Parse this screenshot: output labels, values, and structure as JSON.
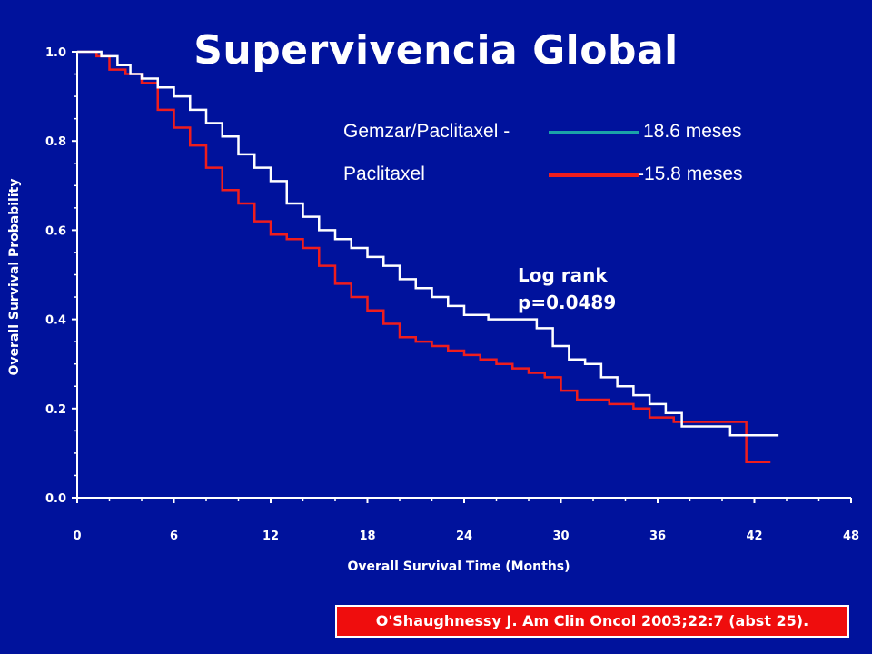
{
  "title": "Supervivencia Global",
  "legend": {
    "items": [
      {
        "name": "Gemzar/Paclitaxel -",
        "value": "18.6 meses",
        "color": "#1aa3a8"
      },
      {
        "name": "Paclitaxel",
        "value": "-15.8 meses",
        "color": "#ef1d1d"
      }
    ]
  },
  "annotation": {
    "line1": "Log rank",
    "line2": "p=0.0489"
  },
  "citation": "O'Shaughnessy J. Am Clin Oncol 2003;22:7 (abst 25).",
  "chart_data": {
    "type": "line",
    "step": true,
    "xlabel": "Overall Survival Time (Months)",
    "ylabel": "Overall Survival Probability",
    "xlim": [
      0,
      48
    ],
    "ylim": [
      0,
      1.0
    ],
    "xticks": [
      "0",
      "6",
      "12",
      "18",
      "24",
      "30",
      "36",
      "42",
      "48"
    ],
    "yticks": [
      "0.0",
      "0.2",
      "0.4",
      "0.6",
      "0.8",
      "1.0"
    ],
    "grid": false,
    "series": [
      {
        "name": "Gemzar/Paclitaxel",
        "line_color": "#ffffff",
        "points": [
          [
            0,
            1.0
          ],
          [
            1.5,
            0.99
          ],
          [
            2.5,
            0.97
          ],
          [
            3.3,
            0.95
          ],
          [
            4.0,
            0.94
          ],
          [
            5.0,
            0.92
          ],
          [
            6.0,
            0.9
          ],
          [
            7.0,
            0.87
          ],
          [
            8.0,
            0.84
          ],
          [
            9.0,
            0.81
          ],
          [
            10.0,
            0.77
          ],
          [
            11.0,
            0.74
          ],
          [
            12.0,
            0.71
          ],
          [
            13.0,
            0.66
          ],
          [
            14.0,
            0.63
          ],
          [
            15.0,
            0.6
          ],
          [
            16.0,
            0.58
          ],
          [
            17.0,
            0.56
          ],
          [
            18.0,
            0.54
          ],
          [
            19.0,
            0.52
          ],
          [
            20.0,
            0.49
          ],
          [
            21.0,
            0.47
          ],
          [
            22.0,
            0.45
          ],
          [
            23.0,
            0.43
          ],
          [
            24.0,
            0.41
          ],
          [
            25.5,
            0.4
          ],
          [
            27.0,
            0.4
          ],
          [
            28.5,
            0.38
          ],
          [
            29.5,
            0.34
          ],
          [
            30.5,
            0.31
          ],
          [
            31.5,
            0.3
          ],
          [
            32.5,
            0.27
          ],
          [
            33.5,
            0.25
          ],
          [
            34.5,
            0.23
          ],
          [
            35.5,
            0.21
          ],
          [
            36.5,
            0.19
          ],
          [
            37.5,
            0.16
          ],
          [
            40.0,
            0.16
          ],
          [
            40.5,
            0.14
          ],
          [
            43.5,
            0.14
          ]
        ]
      },
      {
        "name": "Paclitaxel",
        "line_color": "#ef1d1d",
        "points": [
          [
            0,
            1.0
          ],
          [
            1.2,
            0.99
          ],
          [
            2.0,
            0.96
          ],
          [
            3.0,
            0.95
          ],
          [
            4.0,
            0.93
          ],
          [
            5.0,
            0.87
          ],
          [
            6.0,
            0.83
          ],
          [
            7.0,
            0.79
          ],
          [
            8.0,
            0.74
          ],
          [
            9.0,
            0.69
          ],
          [
            10.0,
            0.66
          ],
          [
            11.0,
            0.62
          ],
          [
            12.0,
            0.59
          ],
          [
            13.0,
            0.58
          ],
          [
            14.0,
            0.56
          ],
          [
            15.0,
            0.52
          ],
          [
            16.0,
            0.48
          ],
          [
            17.0,
            0.45
          ],
          [
            18.0,
            0.42
          ],
          [
            19.0,
            0.39
          ],
          [
            20.0,
            0.36
          ],
          [
            21.0,
            0.35
          ],
          [
            22.0,
            0.34
          ],
          [
            23.0,
            0.33
          ],
          [
            24.0,
            0.32
          ],
          [
            25.0,
            0.31
          ],
          [
            26.0,
            0.3
          ],
          [
            27.0,
            0.29
          ],
          [
            28.0,
            0.28
          ],
          [
            29.0,
            0.27
          ],
          [
            30.0,
            0.24
          ],
          [
            31.0,
            0.22
          ],
          [
            33.0,
            0.21
          ],
          [
            34.5,
            0.2
          ],
          [
            35.5,
            0.18
          ],
          [
            37.0,
            0.17
          ],
          [
            40.0,
            0.17
          ],
          [
            41.5,
            0.08
          ],
          [
            43.0,
            0.08
          ]
        ]
      }
    ]
  }
}
